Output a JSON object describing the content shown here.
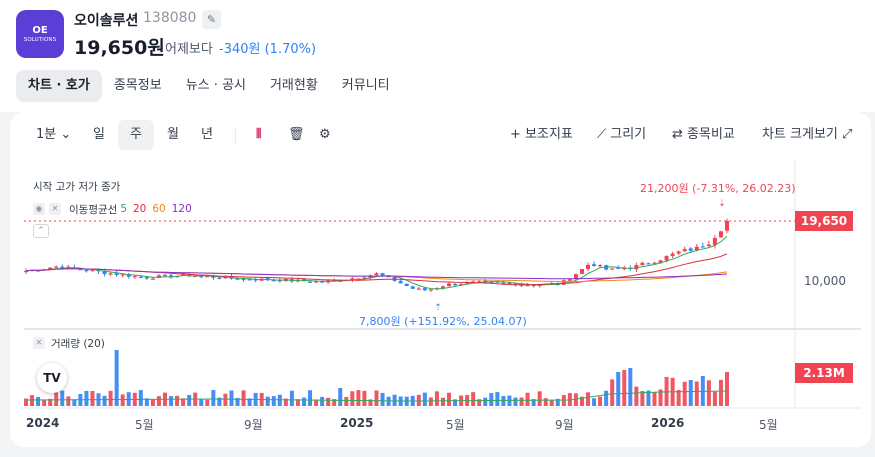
{
  "stock": {
    "logo_line1": "OE",
    "logo_line2": "SOLUTIONS",
    "name": "오이솔루션",
    "code": "138080",
    "price": "19,650원",
    "change_label": "어제보다",
    "change_value": "-340원 (1.70%)",
    "edit_icon": "pencil-icon"
  },
  "tabs": [
    "차트 · 호가",
    "종목정보",
    "뉴스 · 공시",
    "거래현황",
    "커뮤니티"
  ],
  "toolbar": {
    "interval": "1분",
    "periods": [
      "일",
      "주",
      "월",
      "년"
    ],
    "selected_period": "주",
    "indicators": "보조지표",
    "draw": "그리기",
    "compare": "종목비교",
    "fullscreen": "차트 크게보기"
  },
  "legend": {
    "ohlc": "시작 고가 저가 종가",
    "ma_title": "이동평균선",
    "ma_periods": [
      "5",
      "20",
      "60",
      "120"
    ],
    "volume": "거래량 (20)"
  },
  "annotations": {
    "high": "21,200원 (-7.31%, 26.02.23)",
    "low": "7,800원 (+151.92%, 25.04.07)"
  },
  "badges": {
    "price": "19,650",
    "volume": "2.13M"
  },
  "axis": {
    "y_tick": "10,000",
    "x_ticks": [
      "2024",
      "5월",
      "9월",
      "2025",
      "5월",
      "9월",
      "2026",
      "5월"
    ]
  },
  "colors": {
    "up": "#f04452",
    "down": "#3182f6",
    "ma5": "#2eaa5e",
    "ma20": "#e02c3c",
    "ma60": "#f08a1a",
    "ma120": "#8a2fc9",
    "accent": "#5b3ed6"
  },
  "chart_data": {
    "type": "candlestick",
    "interval": "weekly",
    "y_label_tick": 10000,
    "last_close": 19650,
    "period_high": {
      "value": 21200,
      "date": "26.02.23"
    },
    "period_low": {
      "value": 7800,
      "date": "25.04.07"
    },
    "moving_averages": [
      5,
      20,
      60,
      120
    ],
    "volume_last": "2.13M",
    "x_ticks": [
      "2024",
      "5월",
      "9월",
      "2025",
      "5월",
      "9월",
      "2026",
      "5월"
    ]
  }
}
